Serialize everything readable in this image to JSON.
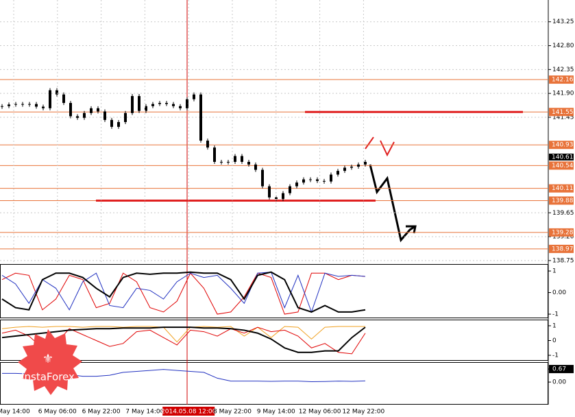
{
  "logo": "InstaForex",
  "chart_data": [
    {
      "type": "candlestick",
      "close": [
        141.66,
        141.69,
        141.7,
        141.69,
        141.7,
        141.65,
        141.62,
        141.96,
        141.88,
        141.72,
        141.47,
        141.44,
        141.53,
        141.62,
        141.56,
        141.4,
        141.27,
        141.36,
        141.53,
        141.85,
        141.57,
        141.66,
        141.7,
        141.72,
        141.7,
        141.66,
        141.62,
        141.79,
        141.88,
        141.01,
        140.88,
        140.61,
        140.61,
        140.61,
        140.72,
        140.61,
        140.56,
        140.46,
        140.15,
        139.94,
        139.91,
        140.02,
        140.15,
        140.22,
        140.28,
        140.28,
        140.25,
        140.24,
        140.37,
        140.44,
        140.5,
        140.52,
        140.56,
        140.61
      ],
      "color": "#000000",
      "ylim": [
        138.71,
        143.66
      ],
      "yticks": [
        143.25,
        {
          "value": 142.8,
          "label": "142.80"
        },
        142.35,
        {
          "value": 141.9,
          "label": "141.90"
        },
        141.45,
        139.65,
        {
          "value": 139.2,
          "label": "139.20"
        },
        138.75
      ],
      "levels": [
        142.16,
        141.55,
        140.93,
        140.54,
        140.11,
        139.88,
        139.28,
        138.97
      ],
      "level_color": "#e8733a",
      "marked_lines": [
        141.55,
        139.88
      ],
      "marked_color": "#e02020",
      "last_price": 140.61,
      "time_labels": [
        "May 14:00",
        "6 May 06:00",
        "6 May 22:00",
        "7 May 14:00",
        "2014.05.08 12:00",
        "8 May 22:00",
        "9 May 14:00",
        "12 May 06:00",
        "12 May 22:00"
      ],
      "grid": true
    },
    {
      "type": "line",
      "ylim": [
        -1.19,
        1.29
      ],
      "yticks": [
        1,
        {
          "value": 0,
          "label": "0.00"
        },
        -1
      ],
      "series": [
        {
          "color": "#e00000",
          "values": [
            0.6,
            0.9,
            0.8,
            -0.8,
            -0.3,
            0.8,
            0.6,
            -0.7,
            -0.5,
            0.9,
            0.5,
            -0.7,
            -0.9,
            -0.4,
            0.9,
            0.2,
            -1.0,
            -0.9,
            -0.2,
            0.9,
            0.7,
            -1.0,
            -0.9,
            0.9,
            0.9,
            0.6,
            0.8,
            0.75
          ]
        },
        {
          "color": "#2030c0",
          "values": [
            0.8,
            0.4,
            -0.5,
            0.6,
            0.2,
            -0.8,
            0.5,
            0.9,
            -0.6,
            -0.7,
            0.2,
            0.1,
            -0.3,
            0.5,
            0.9,
            0.7,
            0.8,
            0.2,
            -0.5,
            0.9,
            0.95,
            -0.7,
            0.8,
            -0.9,
            0.9,
            0.75,
            0.8,
            0.75
          ]
        },
        {
          "color": "#000000",
          "values": [
            -0.3,
            -0.7,
            -0.8,
            0.6,
            0.9,
            0.9,
            0.7,
            0.2,
            -0.2,
            0.7,
            0.9,
            0.85,
            0.9,
            0.9,
            0.95,
            0.9,
            0.9,
            0.6,
            -0.3,
            0.8,
            0.95,
            0.6,
            -0.7,
            -0.9,
            -0.6,
            -0.9,
            -0.9,
            -0.8
          ]
        }
      ]
    },
    {
      "type": "line",
      "ylim": [
        -1.37,
        1.37
      ],
      "yticks": [
        1,
        0,
        -1
      ],
      "series": [
        {
          "color": "#f0a020",
          "values": [
            0.8,
            0.9,
            0.95,
            0.9,
            0.95,
            0.95,
            0.9,
            0.95,
            0.95,
            0.9,
            0.95,
            0.95,
            0.9,
            -0.1,
            0.9,
            0.95,
            0.9,
            0.95,
            0.3,
            0.9,
            0.2,
            0.95,
            0.9,
            0.1,
            0.9,
            0.95,
            0.95,
            0.95
          ]
        },
        {
          "color": "#e00000",
          "values": [
            0.5,
            0.7,
            0.3,
            -0.5,
            -0.2,
            0.8,
            0.4,
            0,
            -0.4,
            -0.2,
            0.6,
            0.7,
            0.2,
            -0.3,
            0.7,
            0.6,
            0.3,
            0.8,
            0.5,
            0.9,
            0.6,
            0.7,
            0.3,
            -0.5,
            -0.2,
            -0.8,
            -0.9,
            0.5
          ]
        },
        {
          "color": "#000000",
          "values": [
            0.2,
            0.3,
            0.4,
            0.5,
            0.6,
            0.7,
            0.75,
            0.8,
            0.8,
            0.85,
            0.85,
            0.85,
            0.9,
            0.9,
            0.9,
            0.85,
            0.85,
            0.8,
            0.7,
            0.5,
            0.1,
            -0.5,
            -0.8,
            -0.8,
            -0.7,
            -0.7,
            0.2,
            0.9
          ]
        }
      ]
    },
    {
      "type": "line",
      "ylim": [
        -1.16,
        0.99
      ],
      "yticks": [
        0.67,
        {
          "value": 0,
          "label": "0.00"
        }
      ],
      "series": [
        {
          "color": "#2030c0",
          "values": [
            0.45,
            0.45,
            0.42,
            0.4,
            0.4,
            0.38,
            0.3,
            0.3,
            0.35,
            0.5,
            0.55,
            0.6,
            0.65,
            0.6,
            0.55,
            0.5,
            0.2,
            0.05,
            0.05,
            0.05,
            0.04,
            0.05,
            0.05,
            0.02,
            0.03,
            0.05,
            0.04,
            0.06
          ]
        }
      ]
    }
  ]
}
